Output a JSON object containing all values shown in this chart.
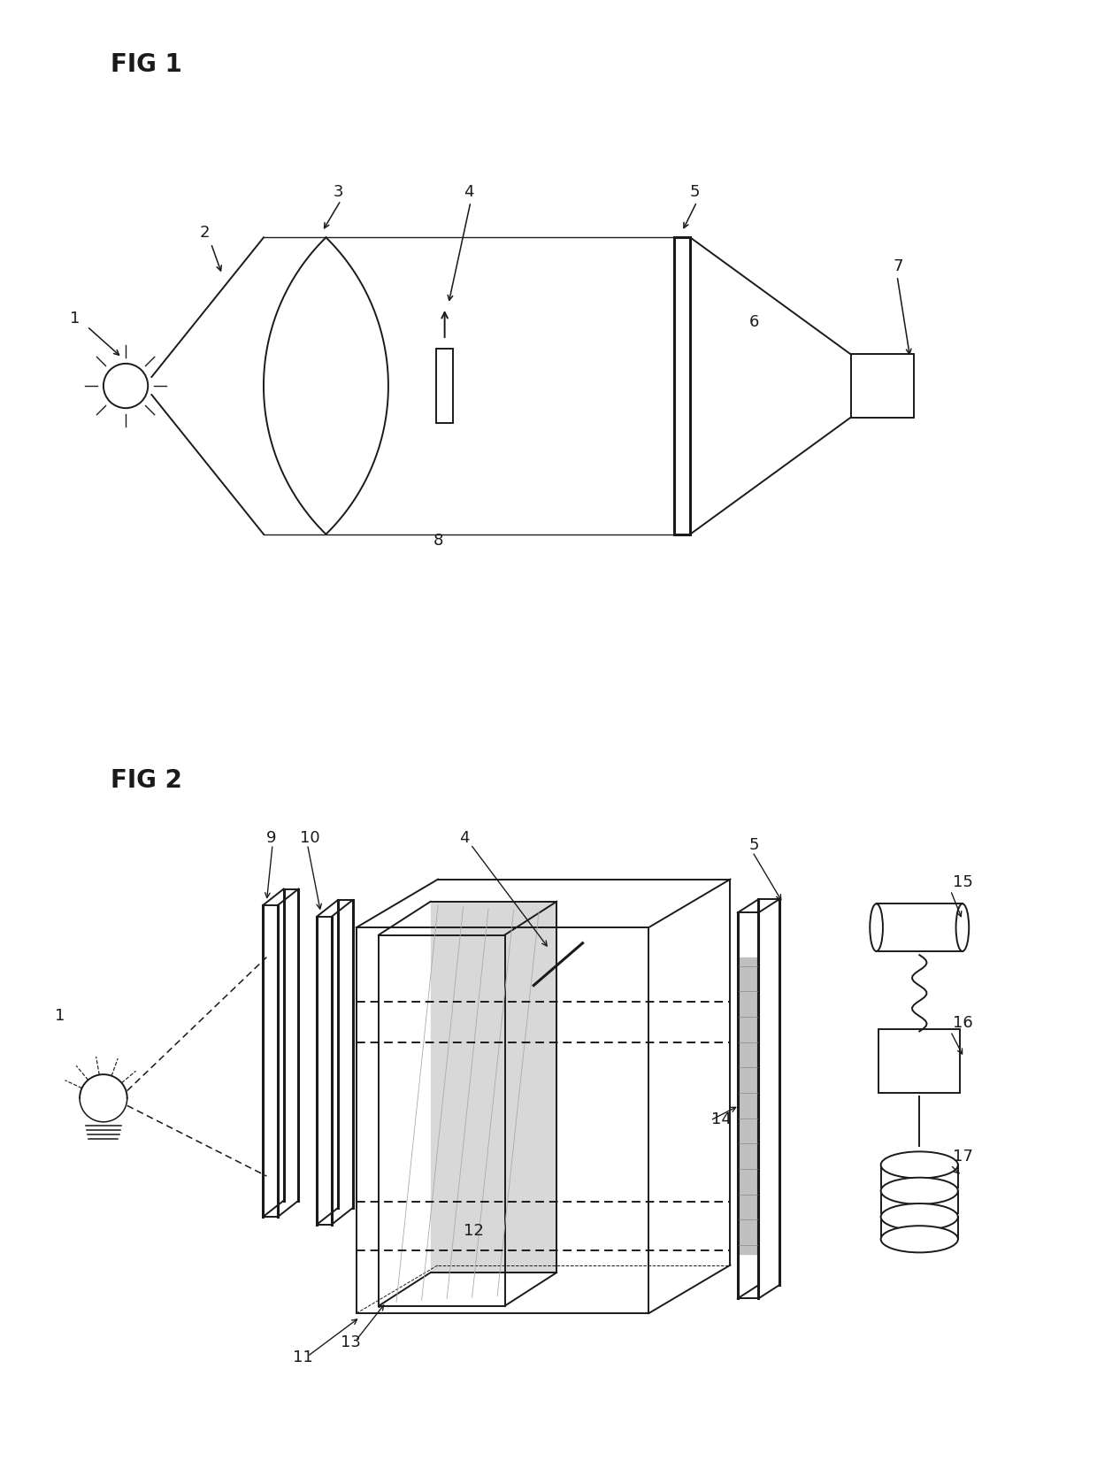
{
  "bg_color": "#ffffff",
  "line_color": "#1a1a1a",
  "lw": 1.4,
  "tlw": 2.2
}
